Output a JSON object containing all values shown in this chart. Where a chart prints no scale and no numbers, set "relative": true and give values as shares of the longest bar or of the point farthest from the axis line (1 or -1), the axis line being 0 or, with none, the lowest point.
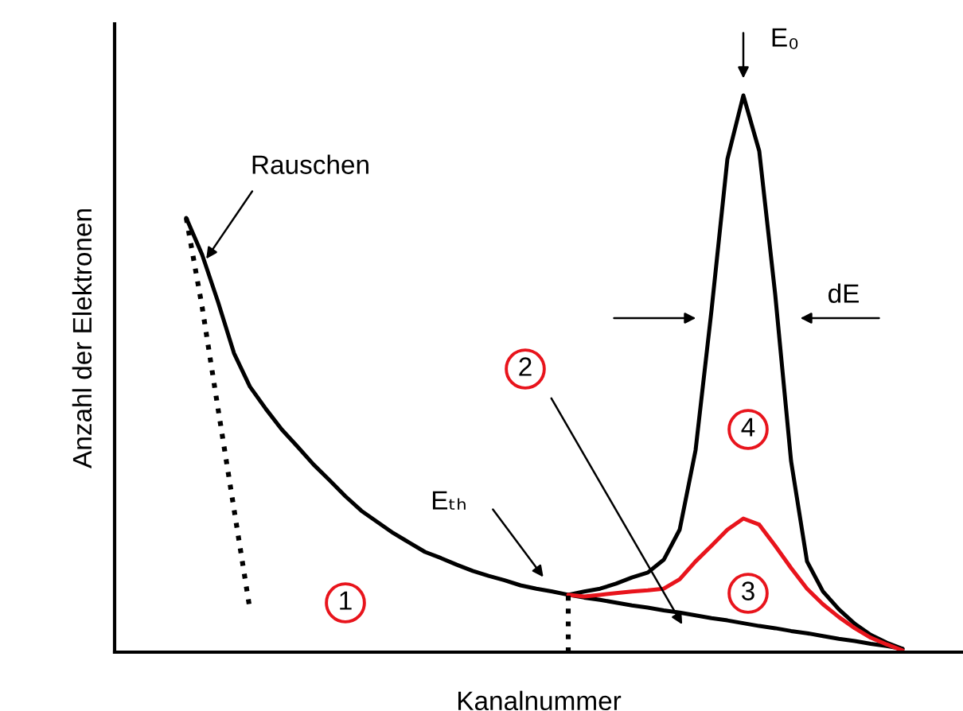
{
  "chart_data": {
    "type": "line",
    "relative": true,
    "xlabel": "Kanalnummer",
    "ylabel": "Anzahl der Elektronen",
    "categories": [
      null,
      null,
      null,
      null,
      null,
      null,
      null,
      null,
      null,
      null,
      null,
      null,
      null,
      null,
      null,
      null,
      null,
      null,
      null,
      null,
      null,
      null,
      null,
      null,
      null,
      null,
      null,
      null,
      null,
      null,
      null,
      null,
      null,
      null,
      null,
      null,
      null,
      null,
      null,
      null,
      null,
      null,
      null,
      null,
      null,
      null
    ],
    "series": [
      {
        "color": "#000000",
        "line_style": "solid",
        "values": [
          0.78,
          0.714,
          0.629,
          0.537,
          0.477,
          0.437,
          0.4,
          0.369,
          0.337,
          0.309,
          0.28,
          0.254,
          0.234,
          0.214,
          0.197,
          0.18,
          0.169,
          0.157,
          0.146,
          0.137,
          0.129,
          0.12,
          0.114,
          0.109,
          0.103,
          0.109,
          0.114,
          0.123,
          0.134,
          0.143,
          0.166,
          0.22,
          0.363,
          0.614,
          0.886,
          1,
          0.9,
          0.643,
          0.343,
          0.163,
          0.109,
          0.077,
          0.051,
          0.031,
          0.017,
          0.006
        ]
      },
      {
        "color": "#000000",
        "line_style": "solid",
        "values": [
          null,
          null,
          null,
          null,
          null,
          null,
          null,
          null,
          null,
          null,
          null,
          null,
          null,
          null,
          null,
          null,
          null,
          null,
          null,
          null,
          null,
          null,
          null,
          null,
          0.103,
          0.098,
          0.094,
          0.089,
          0.084,
          0.08,
          0.075,
          0.071,
          0.066,
          0.061,
          0.057,
          0.052,
          0.047,
          0.043,
          0.038,
          0.034,
          0.029,
          0.024,
          0.02,
          0.015,
          0.011,
          0.006
        ]
      },
      {
        "color": "#e8141c",
        "line_style": "solid",
        "values": [
          null,
          null,
          null,
          null,
          null,
          null,
          null,
          null,
          null,
          null,
          null,
          null,
          null,
          null,
          null,
          null,
          null,
          null,
          null,
          null,
          null,
          null,
          null,
          null,
          0.103,
          0.1,
          0.103,
          0.106,
          0.109,
          0.111,
          0.114,
          0.131,
          0.163,
          0.191,
          0.22,
          0.24,
          0.229,
          0.191,
          0.151,
          0.114,
          0.086,
          0.063,
          0.043,
          0.026,
          0.014,
          0.003
        ]
      },
      {
        "color": "#000000",
        "line_style": "dotted",
        "values": [
          0.78,
          0.62,
          0.437,
          0.257,
          0.077,
          null,
          null,
          null,
          null,
          null,
          null,
          null,
          null,
          null,
          null,
          null,
          null,
          null,
          null,
          null,
          null,
          null,
          null,
          null,
          null,
          null,
          null,
          null,
          null,
          null,
          null,
          null,
          null,
          null,
          null,
          null,
          null,
          null,
          null,
          null,
          null,
          null,
          null,
          null,
          null,
          null
        ]
      }
    ],
    "annotations": [
      "Rauschen",
      "Eₜₕ",
      "E₀",
      "dE",
      "1",
      "2",
      "3",
      "4"
    ],
    "grid": false,
    "legend": false
  }
}
